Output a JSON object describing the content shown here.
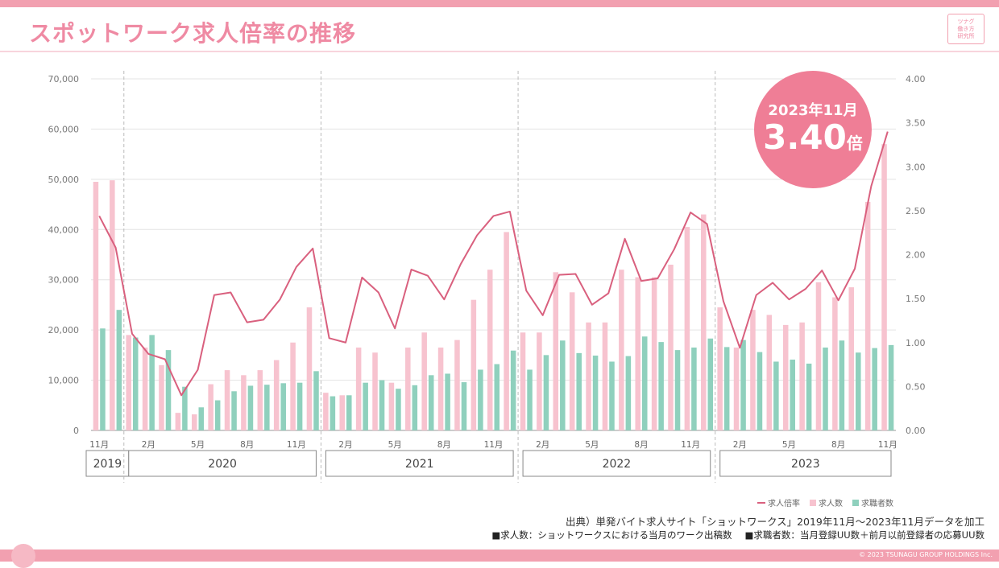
{
  "header": {
    "title": "スポットワーク求人倍率の推移",
    "logo_lines": [
      "ツナグ",
      "働き方",
      "研究所"
    ]
  },
  "callout": {
    "date": "2023年11月",
    "value": "3.40",
    "unit": "倍"
  },
  "legend": {
    "ratio": "求人倍率",
    "openings": "求人数",
    "seekers": "求職者数"
  },
  "footer": {
    "source": "出典）単発バイト求人サイト「ショットワークス」2019年11月～2023年11月データを加工",
    "note1": "■求人数：ショットワークスにおける当月のワーク出稿数",
    "note2": "■求職者数：当月登録UU数＋前月以前登録者の応募UU数",
    "copyright": "© 2023 TSUNAGU GROUP HOLDINGS Inc."
  },
  "colors": {
    "accent": "#ef8aa3",
    "openings_bar": "#f7c3cf",
    "seekers_bar": "#8fd0bd",
    "ratio_line": "#d9607e"
  },
  "chart_data": {
    "type": "bar",
    "combo": "bars + line on secondary axis",
    "months": [
      "2019-11",
      "2019-12",
      "2020-01",
      "2020-02",
      "2020-03",
      "2020-04",
      "2020-05",
      "2020-06",
      "2020-07",
      "2020-08",
      "2020-09",
      "2020-10",
      "2020-11",
      "2020-12",
      "2021-01",
      "2021-02",
      "2021-03",
      "2021-04",
      "2021-05",
      "2021-06",
      "2021-07",
      "2021-08",
      "2021-09",
      "2021-10",
      "2021-11",
      "2021-12",
      "2022-01",
      "2022-02",
      "2022-03",
      "2022-04",
      "2022-05",
      "2022-06",
      "2022-07",
      "2022-08",
      "2022-09",
      "2022-10",
      "2022-11",
      "2022-12",
      "2023-01",
      "2023-02",
      "2023-03",
      "2023-04",
      "2023-05",
      "2023-06",
      "2023-07",
      "2023-08",
      "2023-09",
      "2023-10",
      "2023-11"
    ],
    "x_tick_labels": [
      {
        "month": "2019-11",
        "label": "11月"
      },
      {
        "month": "2020-02",
        "label": "2月"
      },
      {
        "month": "2020-05",
        "label": "5月"
      },
      {
        "month": "2020-08",
        "label": "8月"
      },
      {
        "month": "2020-11",
        "label": "11月"
      },
      {
        "month": "2021-02",
        "label": "2月"
      },
      {
        "month": "2021-05",
        "label": "5月"
      },
      {
        "month": "2021-08",
        "label": "8月"
      },
      {
        "month": "2021-11",
        "label": "11月"
      },
      {
        "month": "2022-02",
        "label": "2月"
      },
      {
        "month": "2022-05",
        "label": "5月"
      },
      {
        "month": "2022-08",
        "label": "8月"
      },
      {
        "month": "2022-11",
        "label": "11月"
      },
      {
        "month": "2023-02",
        "label": "2月"
      },
      {
        "month": "2023-05",
        "label": "5月"
      },
      {
        "month": "2023-08",
        "label": "8月"
      },
      {
        "month": "2023-11",
        "label": "11月"
      }
    ],
    "year_groups": [
      {
        "label": "2019",
        "from": "2019-11",
        "to": "2019-12"
      },
      {
        "label": "2020",
        "from": "2020-01",
        "to": "2020-12"
      },
      {
        "label": "2021",
        "from": "2021-01",
        "to": "2021-12"
      },
      {
        "label": "2022",
        "from": "2022-01",
        "to": "2022-12"
      },
      {
        "label": "2023",
        "from": "2023-01",
        "to": "2023-11"
      }
    ],
    "series": [
      {
        "name": "求人数",
        "axis": "left",
        "values": [
          49500,
          49800,
          19000,
          16500,
          13000,
          3500,
          3200,
          9200,
          12000,
          11000,
          12000,
          14000,
          17500,
          24500,
          7500,
          7000,
          16500,
          15500,
          9500,
          16500,
          19500,
          16500,
          18000,
          26000,
          32000,
          39500,
          19500,
          19500,
          31500,
          27500,
          21500,
          21500,
          32000,
          30500,
          30500,
          33000,
          40500,
          43000,
          24500,
          16500,
          24000,
          23000,
          21000,
          21500,
          29500,
          26500,
          28500,
          45500,
          57000
        ]
      },
      {
        "name": "求職者数",
        "axis": "left",
        "values": [
          20300,
          24000,
          18500,
          19000,
          16000,
          8700,
          4600,
          6000,
          7800,
          8900,
          9100,
          9400,
          9500,
          11800,
          6800,
          7000,
          9500,
          10000,
          8300,
          9000,
          11000,
          11300,
          9600,
          12100,
          13200,
          15900,
          12100,
          15000,
          17900,
          15400,
          14900,
          13700,
          14800,
          18700,
          17600,
          16000,
          16500,
          18300,
          16600,
          18000,
          15600,
          13700,
          14100,
          13300,
          16500,
          17900,
          15500,
          16400,
          17000
        ]
      },
      {
        "name": "求人倍率",
        "axis": "right",
        "values": [
          2.44,
          2.08,
          1.1,
          0.87,
          0.81,
          0.4,
          0.69,
          1.54,
          1.57,
          1.23,
          1.26,
          1.49,
          1.86,
          2.07,
          1.05,
          1.0,
          1.74,
          1.57,
          1.16,
          1.83,
          1.76,
          1.49,
          1.89,
          2.22,
          2.44,
          2.49,
          1.59,
          1.31,
          1.77,
          1.78,
          1.43,
          1.56,
          2.18,
          1.7,
          1.73,
          2.06,
          2.48,
          2.35,
          1.47,
          0.94,
          1.54,
          1.68,
          1.49,
          1.61,
          1.82,
          1.48,
          1.84,
          2.78,
          3.4
        ]
      }
    ],
    "y_left": {
      "min": 0,
      "max": 70000,
      "ticks": [
        "0",
        "10,000",
        "20,000",
        "30,000",
        "40,000",
        "50,000",
        "60,000",
        "70,000"
      ]
    },
    "y_right": {
      "min": 0,
      "max": 4.0,
      "ticks": [
        "0.00",
        "0.50",
        "1.00",
        "1.50",
        "2.00",
        "2.50",
        "3.00",
        "3.50",
        "4.00"
      ]
    },
    "grid": true,
    "legend_position": "bottom-right"
  }
}
